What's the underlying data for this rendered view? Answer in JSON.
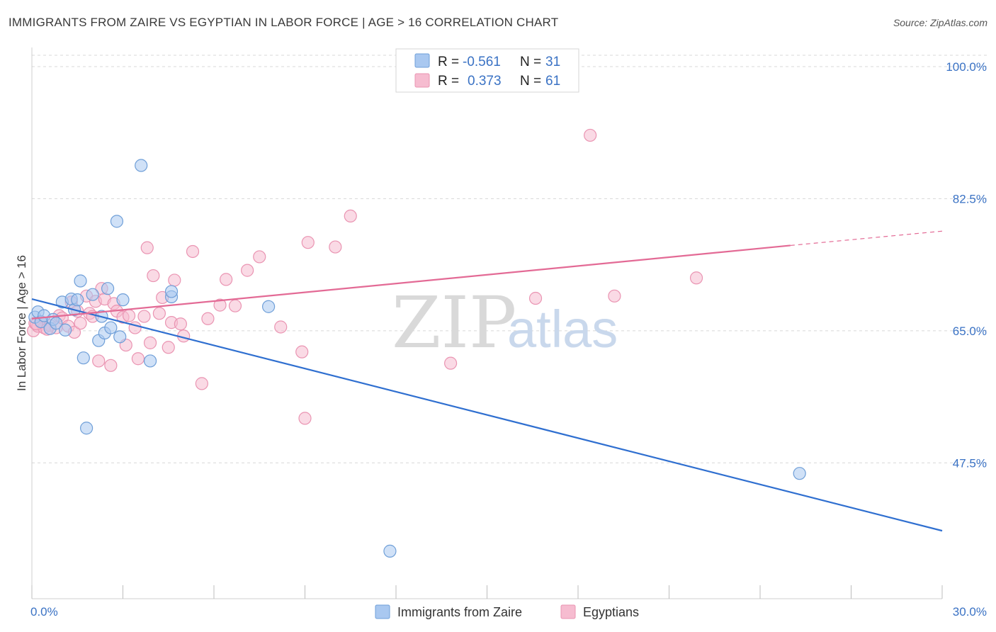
{
  "header": {
    "title": "IMMIGRANTS FROM ZAIRE VS EGYPTIAN IN LABOR FORCE | AGE > 16 CORRELATION CHART",
    "source": "Source: ZipAtlas.com"
  },
  "watermark": {
    "zip": "ZIP",
    "atlas": "atlas"
  },
  "legend_top": {
    "rows": [
      {
        "r_label": "R =",
        "r_value": "-0.561",
        "n_label": "N =",
        "n_value": "31"
      },
      {
        "r_label": "R =",
        "r_value": "0.373",
        "n_label": "N =",
        "n_value": "61"
      }
    ]
  },
  "legend_bottom": {
    "items": [
      {
        "label": "Immigrants from Zaire"
      },
      {
        "label": "Egyptians"
      }
    ]
  },
  "colors": {
    "zaire_fill": "#a9c8f0",
    "zaire_stroke": "#6f9fd8",
    "zaire_line": "#2f6fd0",
    "egypt_fill": "#f6bcd0",
    "egypt_stroke": "#ea94b2",
    "egypt_line": "#e36a95",
    "tick_label": "#3a72c4",
    "grid": "#d8d8d8"
  },
  "chart_data": {
    "type": "scatter",
    "title": "IMMIGRANTS FROM ZAIRE VS EGYPTIAN IN LABOR FORCE | AGE > 16 CORRELATION CHART",
    "xlabel": "",
    "ylabel": "In Labor Force | Age > 16",
    "xlim": [
      0,
      30
    ],
    "ylim": [
      29.5,
      101.5
    ],
    "x_tick_labels": [
      "0.0%",
      "30.0%"
    ],
    "y_ticks": [
      47.5,
      65.0,
      82.5,
      100.0
    ],
    "y_tick_labels": [
      "47.5%",
      "65.0%",
      "82.5%",
      "100.0%"
    ],
    "grid": true,
    "legend_position": "top-center",
    "series": [
      {
        "name": "Immigrants from Zaire",
        "points": [
          [
            0.1,
            66.8
          ],
          [
            0.2,
            67.5
          ],
          [
            0.3,
            66.2
          ],
          [
            0.4,
            67.0
          ],
          [
            0.6,
            65.3
          ],
          [
            0.7,
            66.5
          ],
          [
            0.8,
            66.0
          ],
          [
            1.0,
            68.8
          ],
          [
            1.1,
            65.1
          ],
          [
            1.3,
            69.2
          ],
          [
            1.4,
            67.8
          ],
          [
            1.5,
            69.1
          ],
          [
            1.6,
            71.6
          ],
          [
            1.7,
            61.4
          ],
          [
            1.8,
            52.1
          ],
          [
            2.0,
            69.8
          ],
          [
            2.2,
            63.7
          ],
          [
            2.3,
            66.9
          ],
          [
            2.4,
            64.7
          ],
          [
            2.5,
            70.6
          ],
          [
            2.6,
            65.4
          ],
          [
            2.8,
            79.5
          ],
          [
            2.9,
            64.2
          ],
          [
            3.0,
            69.1
          ],
          [
            3.6,
            86.9
          ],
          [
            3.9,
            61.0
          ],
          [
            4.6,
            69.5
          ],
          [
            4.6,
            70.2
          ],
          [
            7.8,
            68.2
          ],
          [
            25.3,
            46.1
          ],
          [
            11.8,
            35.8
          ]
        ],
        "trend": {
          "x": [
            0,
            30
          ],
          "y": [
            69.2,
            38.5
          ]
        }
      },
      {
        "name": "Egyptians",
        "points": [
          [
            0.05,
            65.0
          ],
          [
            0.1,
            66.0
          ],
          [
            0.2,
            65.6
          ],
          [
            0.3,
            66.1
          ],
          [
            0.4,
            65.4
          ],
          [
            0.6,
            65.7
          ],
          [
            0.8,
            65.4
          ],
          [
            0.9,
            67.0
          ],
          [
            1.0,
            66.7
          ],
          [
            1.2,
            65.6
          ],
          [
            1.3,
            68.8
          ],
          [
            1.4,
            64.8
          ],
          [
            1.5,
            67.6
          ],
          [
            1.6,
            66.0
          ],
          [
            1.8,
            69.6
          ],
          [
            1.9,
            67.3
          ],
          [
            2.0,
            66.9
          ],
          [
            2.1,
            68.9
          ],
          [
            2.2,
            61.0
          ],
          [
            2.3,
            70.6
          ],
          [
            2.4,
            69.2
          ],
          [
            2.6,
            60.4
          ],
          [
            2.7,
            68.6
          ],
          [
            2.8,
            67.6
          ],
          [
            3.0,
            66.8
          ],
          [
            3.1,
            63.1
          ],
          [
            3.2,
            67.0
          ],
          [
            3.4,
            65.4
          ],
          [
            3.5,
            61.3
          ],
          [
            3.7,
            66.9
          ],
          [
            3.8,
            76.0
          ],
          [
            3.9,
            63.4
          ],
          [
            4.0,
            72.3
          ],
          [
            4.2,
            67.3
          ],
          [
            4.3,
            69.4
          ],
          [
            4.5,
            62.8
          ],
          [
            4.6,
            66.1
          ],
          [
            4.7,
            71.7
          ],
          [
            4.9,
            65.9
          ],
          [
            5.0,
            64.3
          ],
          [
            5.3,
            75.5
          ],
          [
            5.6,
            58.0
          ],
          [
            5.8,
            66.6
          ],
          [
            6.2,
            68.4
          ],
          [
            6.4,
            71.8
          ],
          [
            6.7,
            68.3
          ],
          [
            7.1,
            73.0
          ],
          [
            7.5,
            74.8
          ],
          [
            8.2,
            65.5
          ],
          [
            8.9,
            62.2
          ],
          [
            9.0,
            53.4
          ],
          [
            9.1,
            76.7
          ],
          [
            10.0,
            76.1
          ],
          [
            10.5,
            80.2
          ],
          [
            13.8,
            60.7
          ],
          [
            16.6,
            69.3
          ],
          [
            18.4,
            90.9
          ],
          [
            19.2,
            69.6
          ],
          [
            21.9,
            72.0
          ],
          [
            0.15,
            65.9
          ],
          [
            0.5,
            65.2
          ]
        ],
        "trend": {
          "x": [
            0,
            25
          ],
          "y": [
            66.6,
            76.3
          ]
        },
        "trend_extension": {
          "x": [
            25,
            30
          ],
          "y": [
            76.3,
            78.2
          ]
        }
      }
    ]
  }
}
